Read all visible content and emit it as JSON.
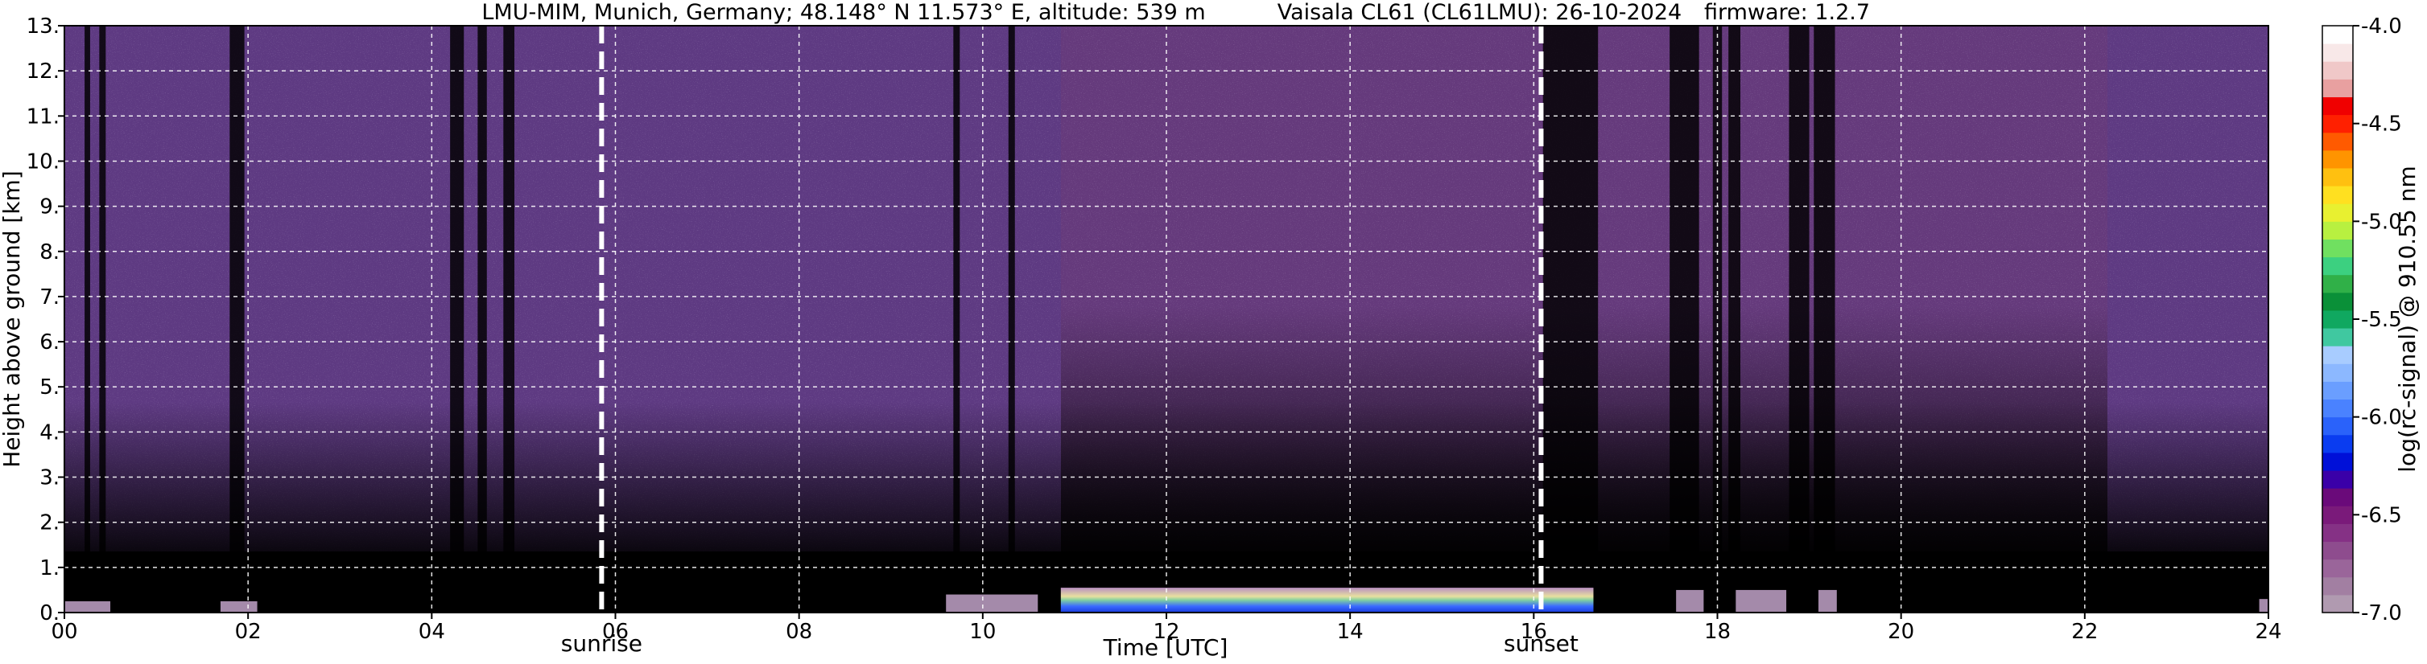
{
  "chart_data": {
    "type": "heatmap",
    "title_parts": [
      "LMU-MIM, Munich, Germany; 48.148° N 11.573° E, altitude: 539 m",
      "Vaisala CL61 (CL61LMU): 26-10-2024",
      "firmware: 1.2.7"
    ],
    "xlabel": "Time [UTC]",
    "ylabel": "Height above ground [km]",
    "colorbar_label": "log(rc-signal) @ 910.55 nm",
    "xlim": [
      0,
      24
    ],
    "ylim": [
      0,
      13
    ],
    "x_ticks": [
      0,
      2,
      4,
      6,
      8,
      10,
      12,
      14,
      16,
      18,
      20,
      22,
      24
    ],
    "x_tick_labels": [
      "00",
      "02",
      "04",
      "06",
      "08",
      "10",
      "12",
      "14",
      "16",
      "18",
      "20",
      "22",
      "24"
    ],
    "y_ticks": [
      0,
      1,
      2,
      3,
      4,
      5,
      6,
      7,
      8,
      9,
      10,
      11,
      12,
      13
    ],
    "y_tick_labels": [
      "0.",
      "1.",
      "2.",
      "3.",
      "4.",
      "5.",
      "6.",
      "7.",
      "8.",
      "9.",
      "10.",
      "11.",
      "12.",
      "13."
    ],
    "grid": true,
    "colorbar_range": [
      -7.0,
      -4.0
    ],
    "colorbar_ticks": [
      -7.0,
      -6.5,
      -6.0,
      -5.5,
      -5.0,
      -4.5,
      -4.0
    ],
    "colorbar_tick_labels": [
      "-7.0",
      "-6.5",
      "-6.0",
      "-5.5",
      "-5.0",
      "-4.5",
      "-4.0"
    ],
    "colorbar_colors": [
      "#b09ab0",
      "#a27fa2",
      "#9a659a",
      "#8e4c8e",
      "#853185",
      "#7a1a7a",
      "#6a0a7a",
      "#3a00a8",
      "#0010d8",
      "#0a3cf0",
      "#2a62fa",
      "#4a82ff",
      "#6a9eff",
      "#8cb8ff",
      "#a8ccff",
      "#40c8a0",
      "#10a860",
      "#0a9038",
      "#30b048",
      "#3cd080",
      "#70e060",
      "#b8f040",
      "#e8f030",
      "#ffe020",
      "#ffc010",
      "#ff9400",
      "#ff5a00",
      "#ff2000",
      "#f00000",
      "#e8a0a0",
      "#f0c8c8",
      "#f8e8e8",
      "#ffffff"
    ],
    "annotations": [
      {
        "text": "sunrise",
        "x": 5.85
      },
      {
        "text": "sunset",
        "x": 16.08
      }
    ],
    "data_gaps_utc": [
      [
        0.22,
        0.28
      ],
      [
        0.38,
        0.45
      ],
      [
        1.8,
        1.96
      ],
      [
        4.2,
        4.35
      ],
      [
        4.5,
        4.6
      ],
      [
        4.78,
        4.9
      ],
      [
        9.68,
        9.75
      ],
      [
        10.28,
        10.35
      ],
      [
        16.1,
        16.7
      ],
      [
        17.48,
        17.8
      ],
      [
        17.95,
        18.05
      ],
      [
        18.12,
        18.25
      ],
      [
        18.78,
        19.0
      ],
      [
        19.05,
        19.28
      ]
    ],
    "signal_layers": [
      {
        "x_start": 0.0,
        "x_end": 0.5,
        "top_km": 0.25,
        "value": -6.3
      },
      {
        "x_start": 1.7,
        "x_end": 2.1,
        "top_km": 0.25,
        "value": -6.3
      },
      {
        "x_start": 9.6,
        "x_end": 10.6,
        "top_km": 0.4,
        "value": -6.0
      },
      {
        "x_start": 10.85,
        "x_end": 16.65,
        "top_km": 0.55,
        "value": -5.5
      },
      {
        "x_start": 17.55,
        "x_end": 17.85,
        "top_km": 0.5,
        "value": -6.2
      },
      {
        "x_start": 18.2,
        "x_end": 18.75,
        "top_km": 0.5,
        "value": -6.2
      },
      {
        "x_start": 19.1,
        "x_end": 19.3,
        "top_km": 0.5,
        "value": -6.2
      },
      {
        "x_start": 23.9,
        "x_end": 24.0,
        "top_km": 0.3,
        "value": -6.3
      }
    ]
  }
}
